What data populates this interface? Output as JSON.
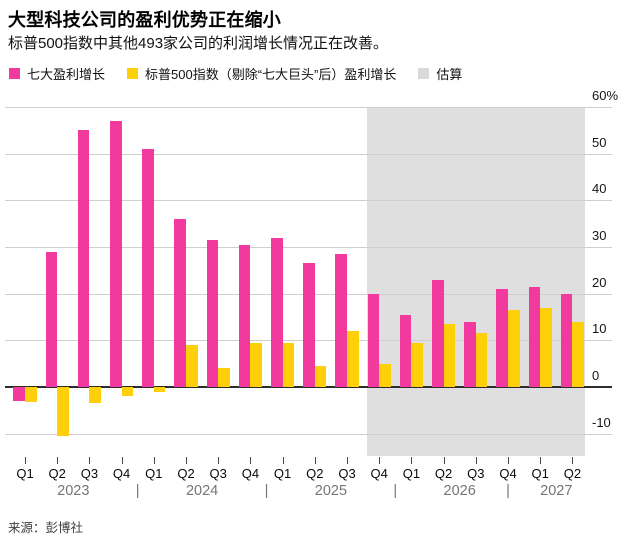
{
  "page": {
    "title": "大型科技公司的盈利优势正在缩小",
    "subtitle": "标普500指数中其他493家公司的利润增长情况正在改善。",
    "source": "来源：彭博社"
  },
  "legend": [
    {
      "label": "七大盈利增长",
      "color": "#f2399d"
    },
    {
      "label": "标普500指数（剔除“七大巨头”后）盈利增长",
      "color": "#ffd008"
    },
    {
      "label": "估算",
      "color": "#d9d9d9"
    }
  ],
  "chart_data": {
    "type": "bar",
    "title": "大型科技公司的盈利优势正在缩小",
    "subtitle": "标普500指数中其他493家公司的利润增长情况正在改善。",
    "categories": [
      "2023 Q1",
      "2023 Q2",
      "2023 Q3",
      "2023 Q4",
      "2024 Q1",
      "2024 Q2",
      "2024 Q3",
      "2024 Q4",
      "2025 Q1",
      "2025 Q2",
      "2025 Q3",
      "2025 Q4",
      "2026 Q1",
      "2026 Q2",
      "2026 Q3",
      "2026 Q4",
      "2027 Q1",
      "2027 Q2"
    ],
    "quarter_labels": [
      "Q1",
      "Q2",
      "Q3",
      "Q4",
      "Q1",
      "Q2",
      "Q3",
      "Q4",
      "Q1",
      "Q2",
      "Q3",
      "Q4",
      "Q1",
      "Q2",
      "Q3",
      "Q4",
      "Q1",
      "Q2"
    ],
    "series": [
      {
        "name": "七大盈利增长",
        "color": "#f2399d",
        "values": [
          -3,
          29,
          55,
          57,
          51,
          36,
          31.5,
          30.5,
          32,
          26.5,
          28.5,
          20,
          15.5,
          23,
          14,
          21,
          21.5,
          20
        ]
      },
      {
        "name": "标普500指数（剔除“七大巨头”后）盈利增长",
        "color": "#ffd008",
        "values": [
          -3.2,
          -10.5,
          -3.5,
          -2,
          -1,
          9,
          4,
          9.5,
          9.5,
          4.5,
          12,
          5,
          9.5,
          13.5,
          11.5,
          16.5,
          17,
          14
        ]
      }
    ],
    "estimate": {
      "label": "估算",
      "start_category": "2025 Q4",
      "band_color": "#dfdfdf"
    },
    "y_unit": "%",
    "y_ticks": [
      {
        "label": "60%",
        "value": 60
      },
      {
        "label": "50",
        "value": 50
      },
      {
        "label": "40",
        "value": 40
      },
      {
        "label": "30",
        "value": 30
      },
      {
        "label": "20",
        "value": 20
      },
      {
        "label": "10",
        "value": 10
      },
      {
        "label": "0",
        "value": 0
      },
      {
        "label": "-10",
        "value": -10
      }
    ],
    "ylim": [
      -14.8,
      60
    ],
    "years": [
      {
        "label": "2023",
        "quarters": 4
      },
      {
        "label": "2024",
        "quarters": 4
      },
      {
        "label": "2025",
        "quarters": 4
      },
      {
        "label": "2026",
        "quarters": 4
      },
      {
        "label": "2027",
        "quarters": 2
      }
    ],
    "year_separator": "|",
    "xlabel": "",
    "ylabel": "",
    "grid": true,
    "legend_position": "top",
    "axis_side": "right"
  }
}
